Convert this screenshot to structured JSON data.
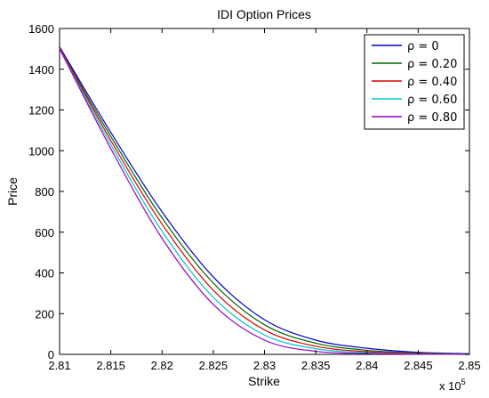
{
  "chart_data": {
    "type": "line",
    "title": "IDI Option Prices",
    "xlabel": "Strike",
    "ylabel": "Price",
    "x_scale_note": "x 10",
    "x_scale_exponent": "5",
    "xlim": [
      2.81,
      2.85
    ],
    "ylim": [
      0,
      1600
    ],
    "x_ticks": [
      2.81,
      2.815,
      2.82,
      2.825,
      2.83,
      2.835,
      2.84,
      2.845,
      2.85
    ],
    "x_tick_labels": [
      "2.81",
      "2.815",
      "2.82",
      "2.825",
      "2.83",
      "2.835",
      "2.84",
      "2.845",
      "2.85"
    ],
    "y_ticks": [
      0,
      200,
      400,
      600,
      800,
      1000,
      1200,
      1400,
      1600
    ],
    "y_tick_labels": [
      "0",
      "200",
      "400",
      "600",
      "800",
      "1000",
      "1200",
      "1400",
      "1600"
    ],
    "grid": false,
    "legend_position": "top-right",
    "x": [
      2.81,
      2.815,
      2.82,
      2.825,
      2.83,
      2.835,
      2.84,
      2.845,
      2.85
    ],
    "series": [
      {
        "name": "ρ = 0",
        "color": "#0000cc",
        "values": [
          1510,
          1090,
          700,
          380,
          170,
          70,
          30,
          10,
          3
        ]
      },
      {
        "name": "ρ = 0.20",
        "color": "#006600",
        "values": [
          1505,
          1070,
          670,
          350,
          145,
          55,
          20,
          7,
          2
        ]
      },
      {
        "name": "ρ = 0.40",
        "color": "#dd0000",
        "values": [
          1505,
          1050,
          640,
          315,
          120,
          40,
          13,
          4,
          1
        ]
      },
      {
        "name": "ρ = 0.60",
        "color": "#00c8c8",
        "values": [
          1500,
          1030,
          605,
          280,
          95,
          28,
          8,
          2,
          0
        ]
      },
      {
        "name": "ρ = 0.80",
        "color": "#9900cc",
        "values": [
          1500,
          1010,
          570,
          245,
          70,
          15,
          4,
          1,
          0
        ]
      }
    ]
  }
}
